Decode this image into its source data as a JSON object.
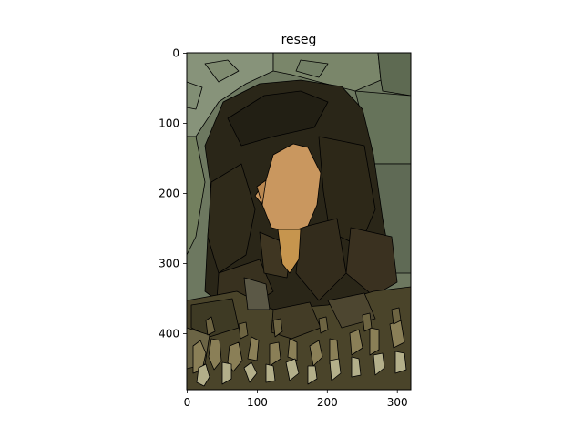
{
  "figure": {
    "title": "reseg",
    "x_ticks": [
      "0",
      "100",
      "200",
      "300"
    ],
    "y_ticks": [
      "0",
      "100",
      "200",
      "300",
      "400"
    ]
  },
  "image": {
    "description_colors": {
      "background_green": "#6d7860",
      "background_light": "#879478",
      "hair_dark": "#2a2618",
      "hair_mid": "#3a3120",
      "face": "#c9975f",
      "neck": "#c6954e",
      "clothing_dark": "#4a442a",
      "clothing_mid": "#7e7450",
      "clothing_light": "#b8b490",
      "outline": "#000000"
    }
  }
}
